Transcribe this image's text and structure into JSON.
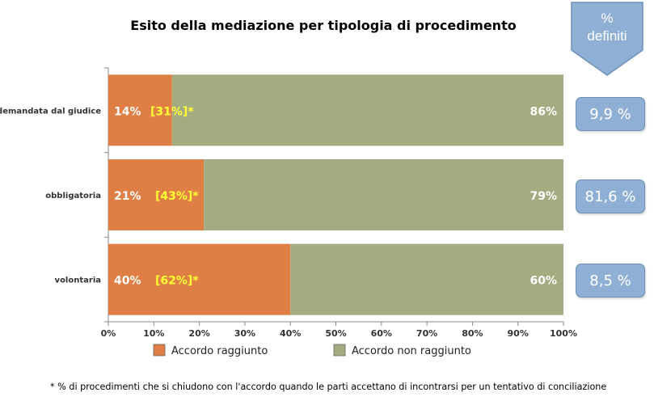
{
  "title": "Esito della mediazione per tipologia di procedimento",
  "definiti_header": {
    "symbol": "%",
    "label": "definiti"
  },
  "definiti_values": [
    "9,9 %",
    "81,6 %",
    "8,5 %"
  ],
  "footnote": "* % di procedimenti che si chiudono con l'accordo quando le parti accettano di incontrarsi per un tentativo di conciliazione",
  "colors": {
    "reached": "#e07f45",
    "not_reached": "#a3ab80",
    "box": "#8fb0d4",
    "bracket_label": "#ffff33"
  },
  "chart_data": {
    "type": "bar",
    "orientation": "horizontal",
    "stacked": true,
    "categories": [
      "demandata dal giudice",
      "obbligatoria",
      "volontaria"
    ],
    "series": [
      {
        "name": "Accordo raggiunto",
        "values": [
          14,
          21,
          40
        ],
        "labels": [
          "14%",
          "21%",
          "40%"
        ]
      },
      {
        "name": "Accordo non raggiunto",
        "values": [
          86,
          79,
          60
        ],
        "labels": [
          "86%",
          "79%",
          "60%"
        ]
      }
    ],
    "bracket_labels": [
      "[31%]*",
      "[43%]*",
      "[62%]*"
    ],
    "xaxis": {
      "min": 0,
      "max": 100,
      "unit": "%",
      "ticks": [
        "0%",
        "10%",
        "20%",
        "30%",
        "40%",
        "50%",
        "60%",
        "70%",
        "80%",
        "90%",
        "100%"
      ]
    },
    "legend": "bottom"
  }
}
